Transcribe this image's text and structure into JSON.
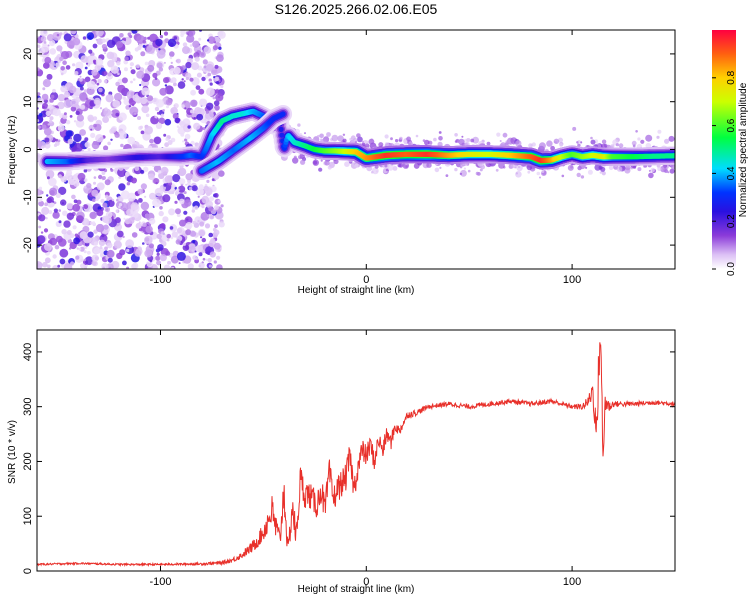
{
  "title": "S126.2025.266.02.06.E05",
  "chart_data": [
    {
      "type": "heatmap",
      "title": "S126.2025.266.02.06.E05",
      "xlabel": "Height of straight line (km)",
      "ylabel": "Frequency (Hz)",
      "xlim": [
        -160,
        150
      ],
      "ylim": [
        -25,
        25
      ],
      "xticks": [
        -100,
        0,
        100
      ],
      "yticks": [
        -20,
        -10,
        0,
        10,
        20
      ],
      "colorbar": {
        "label": "Normalized spectral amplitude",
        "range": [
          0,
          1
        ],
        "ticks": [
          0.0,
          0.2,
          0.4,
          0.6,
          0.8
        ],
        "colormap": [
          "#ffffff",
          "#d9b8f2",
          "#8b3bd9",
          "#3a1fd6",
          "#0000ff",
          "#00ffff",
          "#00ff00",
          "#ffff00",
          "#ff8c00",
          "#ff1040"
        ]
      },
      "trace": {
        "x": [
          -155,
          -145,
          -135,
          -125,
          -110,
          -100,
          -90,
          -85,
          -80,
          -78,
          -75,
          -70,
          -65,
          -60,
          -55,
          -50,
          -48,
          -45,
          -42,
          -40,
          -38,
          -35,
          -30,
          -25,
          -20,
          -15,
          -10,
          -5,
          0,
          10,
          20,
          30,
          40,
          50,
          60,
          70,
          80,
          85,
          90,
          95,
          100,
          105,
          110,
          115,
          120,
          130,
          140,
          150
        ],
        "y": [
          -2.5,
          -2.5,
          -2.2,
          -2.0,
          -1.6,
          -1.5,
          -1.5,
          -1.2,
          -1.5,
          0,
          3,
          6,
          7,
          7.5,
          8,
          7,
          6.5,
          5,
          6,
          0,
          3,
          1.5,
          0.8,
          0,
          -0.3,
          -0.3,
          -0.4,
          -0.5,
          -1.8,
          -1.2,
          -1.0,
          -1.0,
          -1.2,
          -1.0,
          -1.0,
          -1.2,
          -1.5,
          -2.3,
          -2.2,
          -1.5,
          -1.0,
          -1.5,
          -1.2,
          -1.5,
          -1.5,
          -1.5,
          -1.4,
          -1.3
        ],
        "amplitude": [
          0.4,
          0.35,
          0.2,
          0.15,
          0.25,
          0.2,
          0.3,
          0.35,
          0.3,
          0.35,
          0.4,
          0.5,
          0.45,
          0.45,
          0.4,
          0.35,
          0.3,
          0.3,
          0.25,
          0.3,
          0.4,
          0.45,
          0.5,
          0.55,
          0.6,
          0.65,
          0.7,
          0.8,
          0.85,
          0.95,
          0.9,
          0.95,
          0.85,
          0.75,
          0.7,
          0.8,
          0.9,
          0.95,
          0.85,
          0.7,
          0.6,
          0.65,
          0.7,
          0.75,
          0.6,
          0.55,
          0.5,
          0.5
        ]
      },
      "branch": {
        "x": [
          -80,
          -72,
          -64,
          -56,
          -50,
          -45,
          -40
        ],
        "y": [
          -4.5,
          -2.5,
          0,
          2.5,
          4.5,
          6.5,
          7.5
        ],
        "amplitude": [
          0.35,
          0.4,
          0.35,
          0.4,
          0.35,
          0.3,
          0.3
        ]
      }
    },
    {
      "type": "line",
      "xlabel": "Height of straight line (km)",
      "ylabel": "SNR (10 * v/v)",
      "xlim": [
        -160,
        150
      ],
      "ylim": [
        0,
        440
      ],
      "xticks": [
        -100,
        0,
        100
      ],
      "yticks": [
        0,
        100,
        200,
        300,
        400
      ],
      "color": "#e8302a",
      "series": [
        {
          "name": "SNR",
          "x": [
            -160,
            -140,
            -120,
            -100,
            -80,
            -70,
            -65,
            -60,
            -55,
            -50,
            -46,
            -44,
            -42,
            -40,
            -38,
            -36,
            -34,
            -32,
            -30,
            -28,
            -26,
            -24,
            -22,
            -20,
            -18,
            -16,
            -14,
            -12,
            -10,
            -8,
            -6,
            -4,
            -2,
            0,
            2,
            4,
            6,
            8,
            10,
            12,
            14,
            16,
            18,
            20,
            25,
            30,
            40,
            50,
            60,
            70,
            80,
            90,
            100,
            105,
            108,
            110,
            112,
            113,
            114,
            115,
            116,
            118,
            120,
            130,
            140,
            150
          ],
          "y": [
            12,
            14,
            12,
            12,
            13,
            15,
            20,
            30,
            45,
            70,
            110,
            80,
            55,
            150,
            30,
            120,
            60,
            170,
            140,
            140,
            130,
            120,
            150,
            110,
            180,
            130,
            150,
            160,
            170,
            210,
            150,
            190,
            220,
            210,
            230,
            200,
            240,
            220,
            250,
            235,
            265,
            255,
            270,
            285,
            290,
            300,
            305,
            300,
            305,
            310,
            305,
            310,
            300,
            300,
            310,
            330,
            250,
            380,
            430,
            190,
            310,
            300,
            305,
            305,
            308,
            305
          ],
          "noise": [
            3,
            3,
            3,
            3,
            4,
            6,
            8,
            12,
            20,
            30,
            60,
            50,
            40,
            70,
            30,
            60,
            45,
            50,
            45,
            45,
            45,
            45,
            50,
            45,
            50,
            45,
            45,
            45,
            45,
            45,
            40,
            40,
            40,
            35,
            35,
            35,
            30,
            30,
            25,
            25,
            20,
            18,
            15,
            12,
            10,
            8,
            8,
            8,
            8,
            8,
            8,
            8,
            8,
            10,
            20,
            40,
            60,
            80,
            40,
            60,
            40,
            20,
            10,
            8,
            8,
            8
          ]
        }
      ]
    }
  ]
}
